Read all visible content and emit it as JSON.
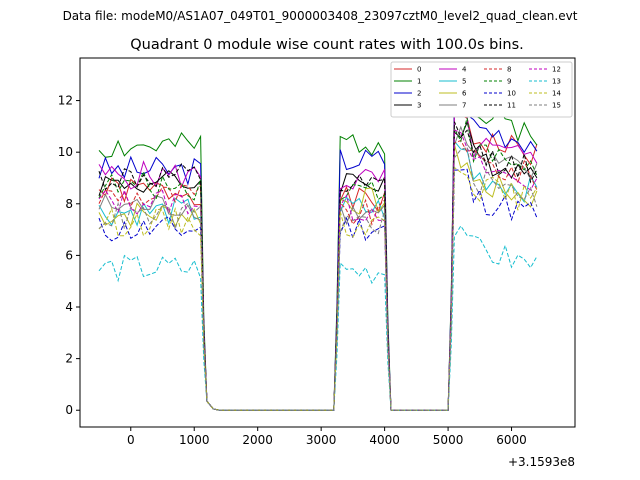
{
  "chart_data": {
    "type": "line",
    "suptitle": "Data file: modeM0/AS1A07_049T01_9000003408_23097cztM0_level2_quad_clean.evt",
    "title": "Quadrant 0 module wise count rates with 100.0s bins.",
    "xlabel": "",
    "ylabel": "",
    "x_offset_label": "+3.1593e8",
    "xlim": [
      -800,
      7000
    ],
    "ylim": [
      -0.65,
      13.65
    ],
    "xticks": [
      0,
      1000,
      2000,
      3000,
      4000,
      5000,
      6000
    ],
    "yticks": [
      0,
      2,
      4,
      6,
      8,
      10,
      12
    ],
    "grid": false,
    "legend_position": "top-right",
    "segments": [
      {
        "start": -500,
        "end": 1100
      },
      {
        "start": 3300,
        "end": 4000
      },
      {
        "start": 5100,
        "end": 6400
      }
    ],
    "gap_samples": {
      "x": [
        1200,
        1300,
        1400,
        1500,
        1600,
        1700,
        1800,
        1900,
        2000,
        2100,
        2200,
        2300,
        2400,
        2500,
        2600,
        2700,
        2800,
        2900,
        3000,
        3100,
        3200,
        4100,
        4200,
        4300,
        4400,
        4500,
        4600,
        4700,
        4800,
        4900,
        5000
      ],
      "values": [
        0.35,
        0.05,
        0,
        0,
        0,
        0,
        0,
        0,
        0,
        0,
        0,
        0,
        0,
        0,
        0,
        0,
        0,
        0,
        0,
        0,
        0,
        0,
        0,
        0,
        0,
        0,
        0,
        0,
        0,
        0,
        0
      ]
    },
    "series": [
      {
        "name": "0",
        "color": "#d62728",
        "dash": false,
        "levels": [
          8.5,
          8.1,
          10.7
        ],
        "noise_seed": 1
      },
      {
        "name": "1",
        "color": "#008000",
        "dash": false,
        "levels": [
          10.2,
          10.4,
          11.6
        ],
        "noise_seed": 2
      },
      {
        "name": "2",
        "color": "#0000cc",
        "dash": false,
        "levels": [
          9.3,
          9.7,
          11.2
        ],
        "noise_seed": 3
      },
      {
        "name": "3",
        "color": "#000000",
        "dash": false,
        "levels": [
          8.8,
          8.9,
          10.0
        ],
        "noise_seed": 4
      },
      {
        "name": "4",
        "color": "#bf00bf",
        "dash": false,
        "levels": [
          9.1,
          8.9,
          10.4
        ],
        "noise_seed": 5
      },
      {
        "name": "5",
        "color": "#17becf",
        "dash": false,
        "levels": [
          7.7,
          7.8,
          9.3
        ],
        "noise_seed": 6
      },
      {
        "name": "6",
        "color": "#bcbd22",
        "dash": false,
        "levels": [
          7.6,
          8.1,
          9.0
        ],
        "noise_seed": 7
      },
      {
        "name": "7",
        "color": "#7f7f7f",
        "dash": false,
        "levels": [
          7.9,
          7.7,
          9.9
        ],
        "noise_seed": 8
      },
      {
        "name": "8",
        "color": "#d62728",
        "dash": true,
        "levels": [
          8.3,
          7.6,
          9.8
        ],
        "noise_seed": 9
      },
      {
        "name": "9",
        "color": "#008000",
        "dash": true,
        "levels": [
          8.7,
          8.6,
          10.2
        ],
        "noise_seed": 10
      },
      {
        "name": "10",
        "color": "#0000cc",
        "dash": true,
        "levels": [
          7.0,
          7.1,
          8.4
        ],
        "noise_seed": 11
      },
      {
        "name": "11",
        "color": "#000000",
        "dash": true,
        "levels": [
          9.0,
          8.6,
          10.1
        ],
        "noise_seed": 12
      },
      {
        "name": "12",
        "color": "#bf00bf",
        "dash": true,
        "levels": [
          8.1,
          7.8,
          9.6
        ],
        "noise_seed": 13
      },
      {
        "name": "13",
        "color": "#17becf",
        "dash": true,
        "levels": [
          5.5,
          5.4,
          6.4
        ],
        "noise_seed": 14
      },
      {
        "name": "14",
        "color": "#bcbd22",
        "dash": true,
        "levels": [
          7.3,
          7.2,
          8.9
        ],
        "noise_seed": 15
      },
      {
        "name": "15",
        "color": "#7f7f7f",
        "dash": true,
        "levels": [
          7.5,
          7.3,
          9.1
        ],
        "noise_seed": 16
      }
    ]
  }
}
